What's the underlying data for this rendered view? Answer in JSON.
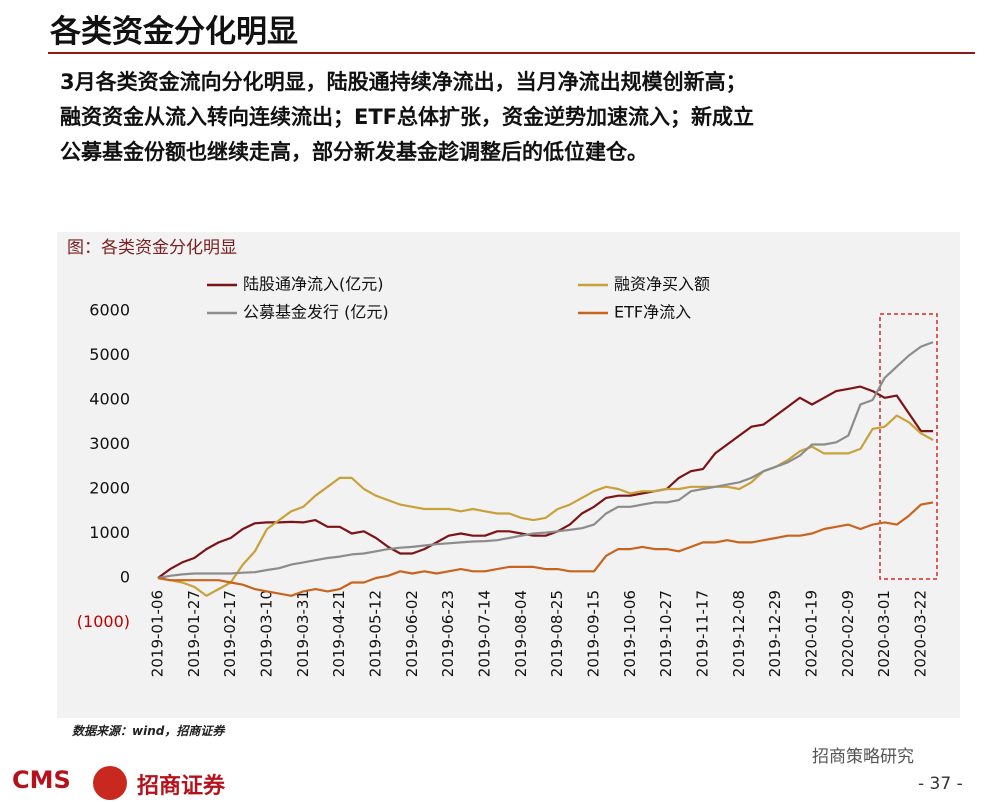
{
  "header": {
    "title": "各类资金分化明显"
  },
  "paragraph": [
    "3月各类资金流向分化明显，陆股通持续净流出，当月净流出规模创新高；",
    "融资资金从流入转向连续流出；ETF总体扩张，资金逆势加速流入；新成立",
    "公募基金份额也继续走高，部分新发基金趁调整后的低位建仓。"
  ],
  "chart_data": {
    "type": "line",
    "title": "图：各类资金分化明显",
    "categories": [
      "2019-01-06",
      null,
      null,
      "2019-01-27",
      null,
      null,
      "2019-02-17",
      null,
      null,
      "2019-03-10",
      null,
      null,
      "2019-03-31",
      null,
      null,
      "2019-04-21",
      null,
      null,
      "2019-05-12",
      null,
      null,
      "2019-06-02",
      null,
      null,
      "2019-06-23",
      null,
      null,
      "2019-07-14",
      null,
      null,
      "2019-08-04",
      null,
      null,
      "2019-08-25",
      null,
      null,
      "2019-09-15",
      null,
      null,
      "2019-10-06",
      null,
      null,
      "2019-10-27",
      null,
      null,
      "2019-11-17",
      null,
      null,
      "2019-12-08",
      null,
      null,
      "2019-12-29",
      null,
      null,
      "2020-01-19",
      null,
      null,
      "2020-02-09",
      null,
      null,
      "2020-03-01",
      null,
      null,
      "2020-03-22",
      null
    ],
    "series": [
      {
        "name": "陆股通净流入(亿元)",
        "color": "#7b1416",
        "values": [
          0,
          200,
          350,
          450,
          650,
          800,
          900,
          1100,
          1230,
          1250,
          1250,
          1260,
          1250,
          1300,
          1150,
          1150,
          1000,
          1050,
          900,
          700,
          550,
          550,
          650,
          800,
          950,
          1000,
          950,
          950,
          1050,
          1050,
          1000,
          950,
          950,
          1050,
          1200,
          1450,
          1600,
          1800,
          1850,
          1850,
          1900,
          1950,
          2000,
          2250,
          2400,
          2450,
          2800,
          3000,
          3200,
          3400,
          3450,
          3650,
          3850,
          4050,
          3900,
          4050,
          4200,
          4250,
          4300,
          4200,
          4050,
          4100,
          3700,
          3300,
          3300
        ]
      },
      {
        "name": "融资净买入额",
        "color": "#c9a13b",
        "values": [
          0,
          -50,
          -100,
          -200,
          -400,
          -250,
          -100,
          300,
          600,
          1100,
          1300,
          1500,
          1600,
          1850,
          2050,
          2250,
          2250,
          2000,
          1850,
          1750,
          1650,
          1600,
          1550,
          1550,
          1550,
          1500,
          1550,
          1500,
          1450,
          1450,
          1350,
          1300,
          1350,
          1550,
          1650,
          1800,
          1950,
          2050,
          2000,
          1900,
          1950,
          1950,
          2000,
          2000,
          2050,
          2050,
          2050,
          2050,
          2000,
          2150,
          2400,
          2500,
          2650,
          2850,
          2950,
          2800,
          2800,
          2800,
          2900,
          3350,
          3400,
          3650,
          3500,
          3250,
          3100
        ]
      },
      {
        "name": "公募基金发行 (亿元)",
        "color": "#8c8c8c",
        "values": [
          0,
          50,
          80,
          100,
          100,
          100,
          100,
          120,
          130,
          180,
          220,
          300,
          350,
          400,
          450,
          480,
          530,
          550,
          600,
          650,
          680,
          700,
          730,
          760,
          780,
          800,
          820,
          830,
          850,
          900,
          950,
          1000,
          1020,
          1050,
          1080,
          1120,
          1200,
          1450,
          1600,
          1600,
          1650,
          1700,
          1700,
          1750,
          1950,
          2000,
          2050,
          2100,
          2150,
          2250,
          2400,
          2500,
          2600,
          2750,
          3000,
          3000,
          3050,
          3200,
          3900,
          4000,
          4500,
          4750,
          5000,
          5200,
          5300
        ]
      },
      {
        "name": "ETF净流入",
        "color": "#c8641e",
        "values": [
          0,
          -50,
          -50,
          -50,
          -50,
          -50,
          -100,
          -150,
          -250,
          -300,
          -350,
          -400,
          -300,
          -250,
          -300,
          -250,
          -100,
          -100,
          0,
          50,
          150,
          100,
          150,
          100,
          150,
          200,
          150,
          150,
          200,
          250,
          250,
          250,
          200,
          200,
          150,
          150,
          150,
          500,
          650,
          650,
          700,
          650,
          650,
          600,
          700,
          800,
          800,
          850,
          800,
          800,
          850,
          900,
          950,
          950,
          1000,
          1100,
          1150,
          1200,
          1100,
          1200,
          1250,
          1200,
          1400,
          1650,
          1700
        ]
      }
    ],
    "ylim": [
      -1000,
      6000
    ],
    "yticks": [
      {
        "value": -1000,
        "label": "(1000)"
      },
      0,
      1000,
      2000,
      3000,
      4000,
      5000,
      6000
    ],
    "legend": "top-left"
  },
  "source": "数据来源：wind，招商证券",
  "footer": {
    "logo": "CMS",
    "brand": "招商证券",
    "watermark": "招商策略研究",
    "page": "- 37 -"
  }
}
